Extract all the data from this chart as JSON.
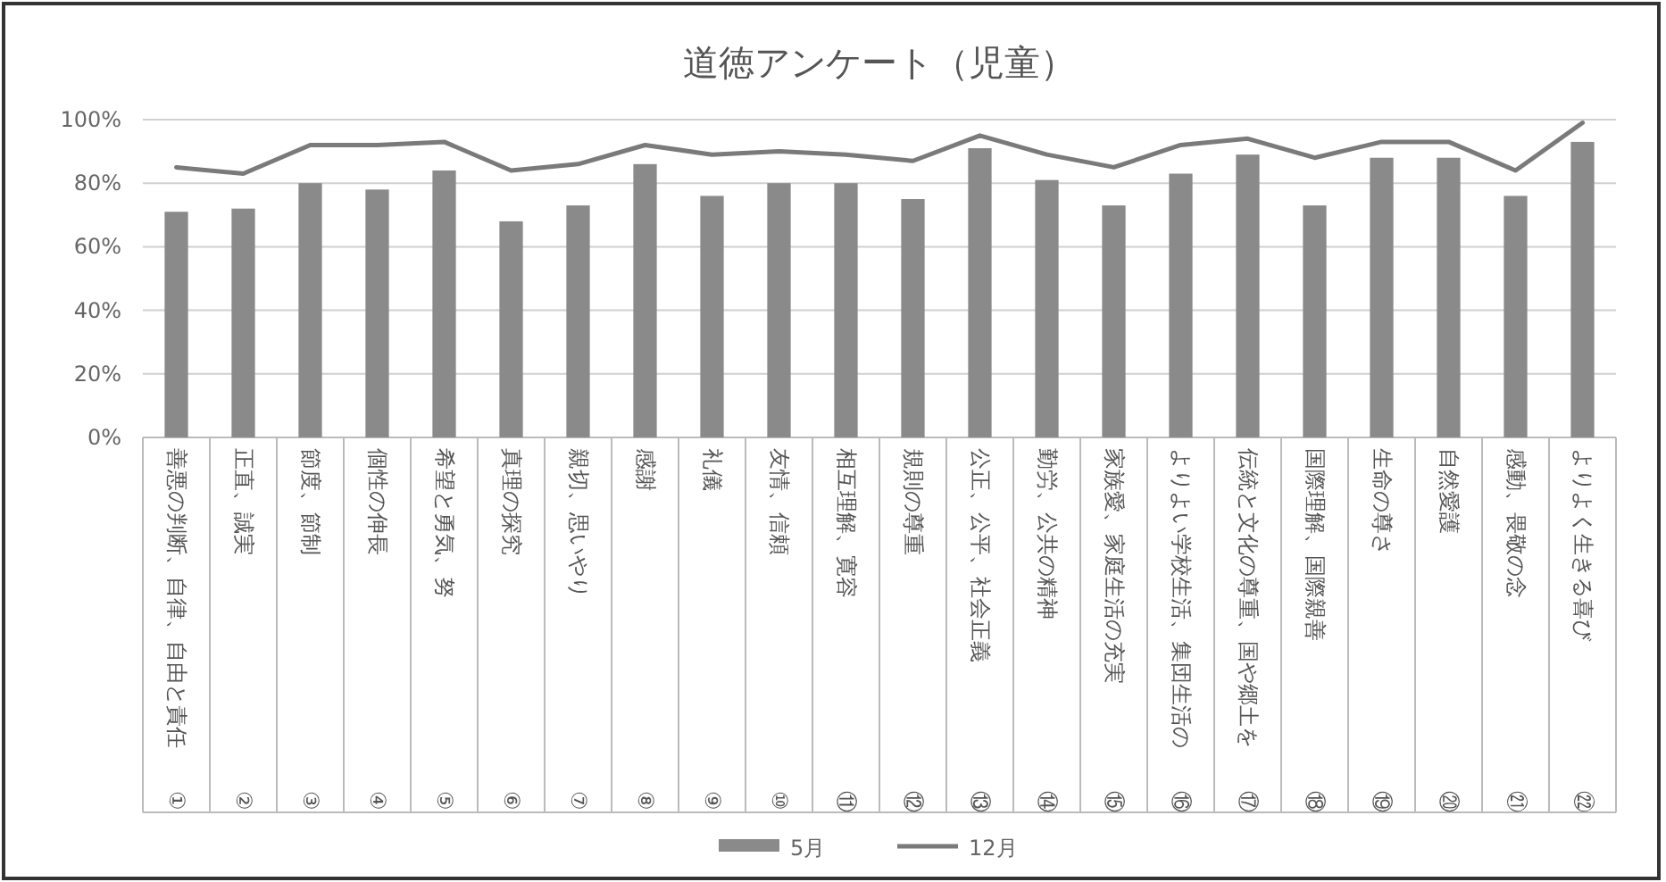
{
  "chart_data": {
    "type": "bar",
    "title": "道徳アンケート（児童）",
    "categories": [
      "①善悪の判断、自律、自由と責任",
      "②正直、誠実",
      "③節度、節制",
      "④個性の伸長",
      "⑤希望と勇気、努",
      "⑥真理の探究",
      "⑦親切、思いやり",
      "⑧感謝",
      "⑨礼儀",
      "⑩友情、信頼",
      "⑪相互理解、寛容",
      "⑫規則の尊重",
      "⑬公正、公平、社会正義",
      "⑭勤労、公共の精神",
      "⑮家族愛、家庭生活の充実",
      "⑯よりよい学校生活、集団生活の",
      "⑰伝統と文化の尊重、国や郷土を",
      "⑱国際理解、国際親善",
      "⑲生命の尊さ",
      "⑳自然愛護",
      "㉑感動、畏敬の念",
      "㉒よりよく生きる喜び"
    ],
    "series": [
      {
        "name": "5月",
        "color": "#8a8a8a",
        "values": [
          71,
          72,
          80,
          78,
          84,
          68,
          73,
          86,
          76,
          80,
          80,
          75,
          91,
          81,
          73,
          83,
          89,
          73,
          88,
          88,
          76,
          93
        ]
      },
      {
        "name": "12月",
        "type": "line",
        "color": "#7a7a7a",
        "values": [
          85,
          83,
          92,
          92,
          93,
          84,
          86,
          92,
          89,
          90,
          89,
          87,
          95,
          89,
          85,
          92,
          94,
          88,
          93,
          93,
          84,
          99
        ]
      }
    ],
    "ylim": [
      0,
      100
    ],
    "yticks": [
      {
        "value": 0,
        "label": "0%"
      },
      {
        "value": 20,
        "label": "20%"
      },
      {
        "value": 40,
        "label": "40%"
      },
      {
        "value": 60,
        "label": "60%"
      },
      {
        "value": 80,
        "label": "80%"
      },
      {
        "value": 100,
        "label": "100%"
      }
    ],
    "grid": "y",
    "legend": "bottom",
    "marker": "none",
    "line_style": "solid"
  }
}
